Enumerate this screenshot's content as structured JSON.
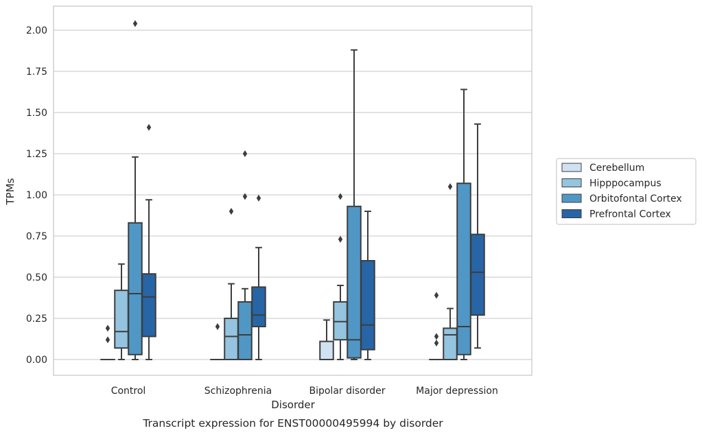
{
  "chart_data": {
    "type": "boxplot",
    "caption": "Transcript expression for ENST00000495994 by disorder",
    "xlabel": "Disorder",
    "ylabel": "TPMs",
    "ylim": [
      -0.1,
      2.15
    ],
    "yticks": [
      "0.00",
      "0.25",
      "0.50",
      "0.75",
      "1.00",
      "1.25",
      "1.50",
      "1.75",
      "2.00"
    ],
    "grid": "horizontal",
    "legend_position": "right",
    "categories": [
      "Control",
      "Schizophrenia",
      "Bipolar disorder",
      "Major depression"
    ],
    "series": [
      {
        "name": "Cerebellum",
        "color": "#d0e1f2",
        "boxes": [
          {
            "q1": 0,
            "median": 0,
            "q3": 0,
            "whislo": 0,
            "whishi": 0,
            "fliers": [
              0.19,
              0.12
            ]
          },
          {
            "q1": 0,
            "median": 0,
            "q3": 0,
            "whislo": 0,
            "whishi": 0,
            "fliers": [
              0.2
            ]
          },
          {
            "q1": 0,
            "median": 0,
            "q3": 0.11,
            "whislo": 0,
            "whishi": 0.24,
            "fliers": []
          },
          {
            "q1": 0,
            "median": 0,
            "q3": 0,
            "whislo": 0,
            "whishi": 0,
            "fliers": [
              0.39,
              0.14,
              0.1
            ]
          }
        ]
      },
      {
        "name": "Hipppocampus",
        "color": "#94c4df",
        "boxes": [
          {
            "q1": 0.07,
            "median": 0.17,
            "q3": 0.42,
            "whislo": 0,
            "whishi": 0.58,
            "fliers": []
          },
          {
            "q1": 0,
            "median": 0.14,
            "q3": 0.25,
            "whislo": 0,
            "whishi": 0.46,
            "fliers": [
              0.9
            ]
          },
          {
            "q1": 0.12,
            "median": 0.23,
            "q3": 0.35,
            "whislo": 0,
            "whishi": 0.45,
            "fliers": [
              0.99,
              0.73
            ]
          },
          {
            "q1": 0,
            "median": 0.15,
            "q3": 0.19,
            "whislo": 0,
            "whishi": 0.31,
            "fliers": [
              1.05
            ]
          }
        ]
      },
      {
        "name": "Orbitofontal Cortex",
        "color": "#5097c6",
        "boxes": [
          {
            "q1": 0.03,
            "median": 0.4,
            "q3": 0.83,
            "whislo": 0,
            "whishi": 1.23,
            "fliers": [
              2.04
            ]
          },
          {
            "q1": 0,
            "median": 0.15,
            "q3": 0.35,
            "whislo": 0,
            "whishi": 0.43,
            "fliers": [
              1.25,
              0.99
            ]
          },
          {
            "q1": 0.01,
            "median": 0.12,
            "q3": 0.93,
            "whislo": 0,
            "whishi": 1.88,
            "fliers": []
          },
          {
            "q1": 0.03,
            "median": 0.2,
            "q3": 1.07,
            "whislo": 0,
            "whishi": 1.64,
            "fliers": []
          }
        ]
      },
      {
        "name": "Prefrontal Cortex",
        "color": "#2765a6",
        "boxes": [
          {
            "q1": 0.14,
            "median": 0.38,
            "q3": 0.52,
            "whislo": 0,
            "whishi": 0.97,
            "fliers": [
              1.41
            ]
          },
          {
            "q1": 0.2,
            "median": 0.27,
            "q3": 0.44,
            "whislo": 0,
            "whishi": 0.68,
            "fliers": [
              0.98
            ]
          },
          {
            "q1": 0.06,
            "median": 0.21,
            "q3": 0.6,
            "whislo": 0,
            "whishi": 0.9,
            "fliers": []
          },
          {
            "q1": 0.27,
            "median": 0.53,
            "q3": 0.76,
            "whislo": 0.07,
            "whishi": 1.43,
            "fliers": []
          }
        ]
      }
    ]
  }
}
